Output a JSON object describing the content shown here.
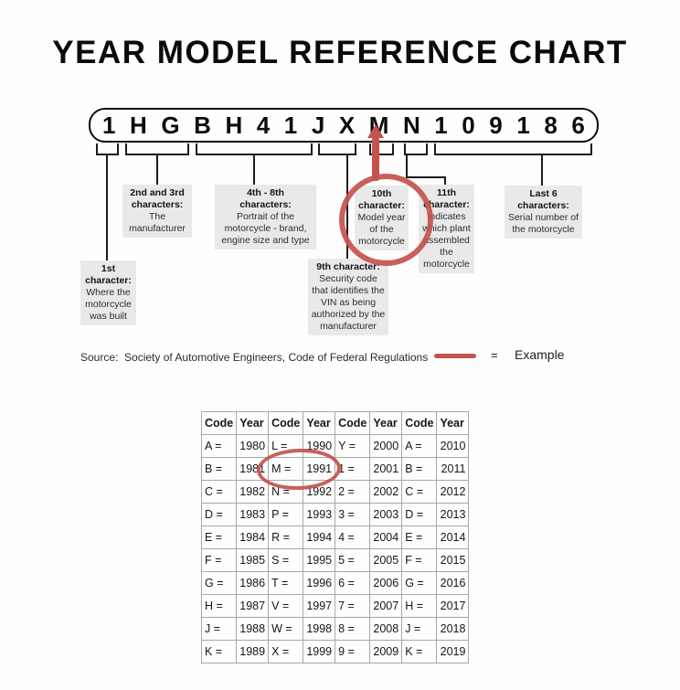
{
  "title": "YEAR MODEL REFERENCE CHART",
  "vin": {
    "characters": [
      "1",
      "H",
      "G",
      "B",
      "H",
      "4",
      "1",
      "J",
      "X",
      "M",
      "N",
      "1",
      "0",
      "9",
      "1",
      "8",
      "6"
    ]
  },
  "callouts": {
    "first": {
      "title": "1st\ncharacter:",
      "body": "Where the\nmotorcycle\nwas built"
    },
    "second_third": {
      "title": "2nd and 3rd\ncharacters:",
      "body": "The\nmanufacturer"
    },
    "fourth_eighth": {
      "title": "4th - 8th\ncharacters:",
      "body": "Portrait of the\nmotorcycle - brand,\nengine size and type"
    },
    "ninth": {
      "title": "9th character:",
      "body": "Security code\nthat identifies the\nVIN as being\nauthorized by the\nmanufacturer"
    },
    "tenth": {
      "title": "10th\ncharacter:",
      "body": "Model year\nof the\nmotorcycle"
    },
    "eleventh": {
      "title": "11th\ncharacter:",
      "body": "Indicates\nwhich plant\nassembled\nthe\nmotorcycle"
    },
    "last_six": {
      "title": "Last 6\ncharacters:",
      "body": "Serial number of\nthe motorcycle"
    }
  },
  "source_line": "Source:  Society of Automotive Engineers, Code of Federal Regulations",
  "legend": {
    "equals": "=",
    "label": "Example"
  },
  "colors": {
    "example_red": "#c4534e",
    "callout_bg": "#e9e9e9",
    "table_border": "#a8a8a8"
  },
  "table": {
    "headers": [
      "Code",
      "Year",
      "Code",
      "Year",
      "Code",
      "Year",
      "Code",
      "Year"
    ],
    "rows": [
      [
        "A =",
        "1980",
        "L =",
        "1990",
        "Y =",
        "2000",
        "A =",
        "2010"
      ],
      [
        "B =",
        "1981",
        "M =",
        "1991",
        "1 =",
        "2001",
        "B =",
        "2011"
      ],
      [
        "C =",
        "1982",
        "N =",
        "1992",
        "2 =",
        "2002",
        "C =",
        "2012"
      ],
      [
        "D =",
        "1983",
        "P =",
        "1993",
        "3 =",
        "2003",
        "D =",
        "2013"
      ],
      [
        "E =",
        "1984",
        "R =",
        "1994",
        "4 =",
        "2004",
        "E =",
        "2014"
      ],
      [
        "F =",
        "1985",
        "S =",
        "1995",
        "5 =",
        "2005",
        "F =",
        "2015"
      ],
      [
        "G =",
        "1986",
        "T =",
        "1996",
        "6 =",
        "2006",
        "G =",
        "2016"
      ],
      [
        "H =",
        "1987",
        "V =",
        "1997",
        "7 =",
        "2007",
        "H =",
        "2017"
      ],
      [
        "J =",
        "1988",
        "W =",
        "1998",
        "8 =",
        "2008",
        "J =",
        "2018"
      ],
      [
        "K =",
        "1989",
        "X =",
        "1999",
        "9 =",
        "2009",
        "K =",
        "2019"
      ]
    ],
    "highlighted_cell": "M = 1991"
  }
}
